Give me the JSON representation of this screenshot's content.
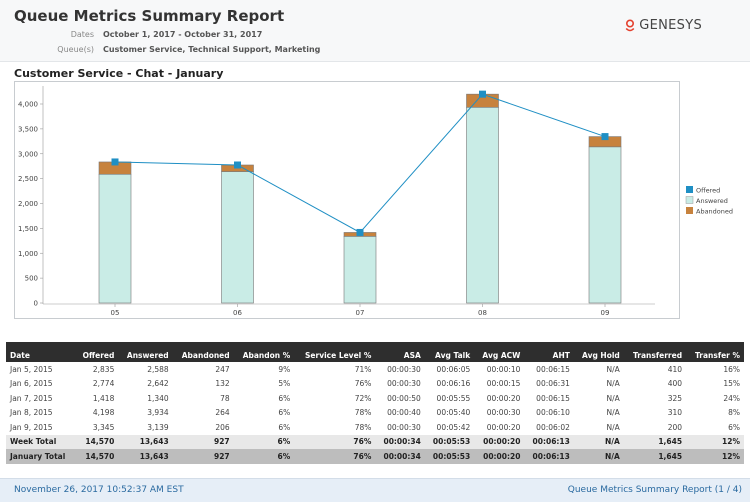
{
  "report": {
    "title": "Queue Metrics Summary Report",
    "dates_label": "Dates",
    "dates_value": "October 1, 2017 - October 31, 2017",
    "queues_label": "Queue(s)",
    "queues_value": "Customer Service, Technical Support, Marketing",
    "logo_text": "GENESYS",
    "logo_color": "#e4402d"
  },
  "section_title": "Customer Service - Chat - January",
  "chart_data": {
    "type": "bar",
    "categories": [
      "05",
      "06",
      "07",
      "08",
      "09"
    ],
    "series": [
      {
        "name": "Offered",
        "type": "line",
        "color": "#1f8fc4",
        "values": [
          2835,
          2774,
          1418,
          4198,
          3345
        ]
      },
      {
        "name": "Answered",
        "type": "stacked-bar",
        "color": "#c9ece6",
        "values": [
          2588,
          2642,
          1340,
          3934,
          3139
        ]
      },
      {
        "name": "Abandoned",
        "type": "stacked-bar",
        "color": "#c7823d",
        "values": [
          247,
          132,
          78,
          264,
          206
        ]
      }
    ],
    "y_ticks": [
      "0",
      "500",
      "1,000",
      "1,500",
      "2,000",
      "2,500",
      "3,000",
      "3,500",
      "4,000"
    ],
    "ylim": [
      0,
      4300
    ],
    "legend_position": "right",
    "grid": false
  },
  "table": {
    "headers": [
      "Date",
      "Offered",
      "Answered",
      "Abandoned",
      "Abandon %",
      "Service Level %",
      "ASA",
      "Avg Talk",
      "Avg ACW",
      "AHT",
      "Avg Hold",
      "Transferred",
      "Transfer %"
    ],
    "rows": [
      [
        "Jan 5, 2015",
        "2,835",
        "2,588",
        "247",
        "9%",
        "71%",
        "00:00:30",
        "00:06:05",
        "00:00:10",
        "00:06:15",
        "N/A",
        "410",
        "16%"
      ],
      [
        "Jan 6, 2015",
        "2,774",
        "2,642",
        "132",
        "5%",
        "76%",
        "00:00:30",
        "00:06:16",
        "00:00:15",
        "00:06:31",
        "N/A",
        "400",
        "15%"
      ],
      [
        "Jan 7, 2015",
        "1,418",
        "1,340",
        "78",
        "6%",
        "72%",
        "00:00:50",
        "00:05:55",
        "00:00:20",
        "00:06:15",
        "N/A",
        "325",
        "24%"
      ],
      [
        "Jan 8, 2015",
        "4,198",
        "3,934",
        "264",
        "6%",
        "78%",
        "00:00:40",
        "00:05:40",
        "00:00:30",
        "00:06:10",
        "N/A",
        "310",
        "8%"
      ],
      [
        "Jan 9, 2015",
        "3,345",
        "3,139",
        "206",
        "6%",
        "78%",
        "00:00:30",
        "00:05:42",
        "00:00:20",
        "00:06:02",
        "N/A",
        "200",
        "6%"
      ]
    ],
    "week_total": [
      "Week Total",
      "14,570",
      "13,643",
      "927",
      "6%",
      "76%",
      "00:00:34",
      "00:05:53",
      "00:00:20",
      "00:06:13",
      "N/A",
      "1,645",
      "12%"
    ],
    "january_total": [
      "January Total",
      "14,570",
      "13,643",
      "927",
      "6%",
      "76%",
      "00:00:34",
      "00:05:53",
      "00:00:20",
      "00:06:13",
      "N/A",
      "1,645",
      "12%"
    ]
  },
  "footer": {
    "timestamp": "November 26, 2017 10:52:37 AM EST",
    "page_info": "Queue Metrics Summary Report (1 / 4)"
  }
}
